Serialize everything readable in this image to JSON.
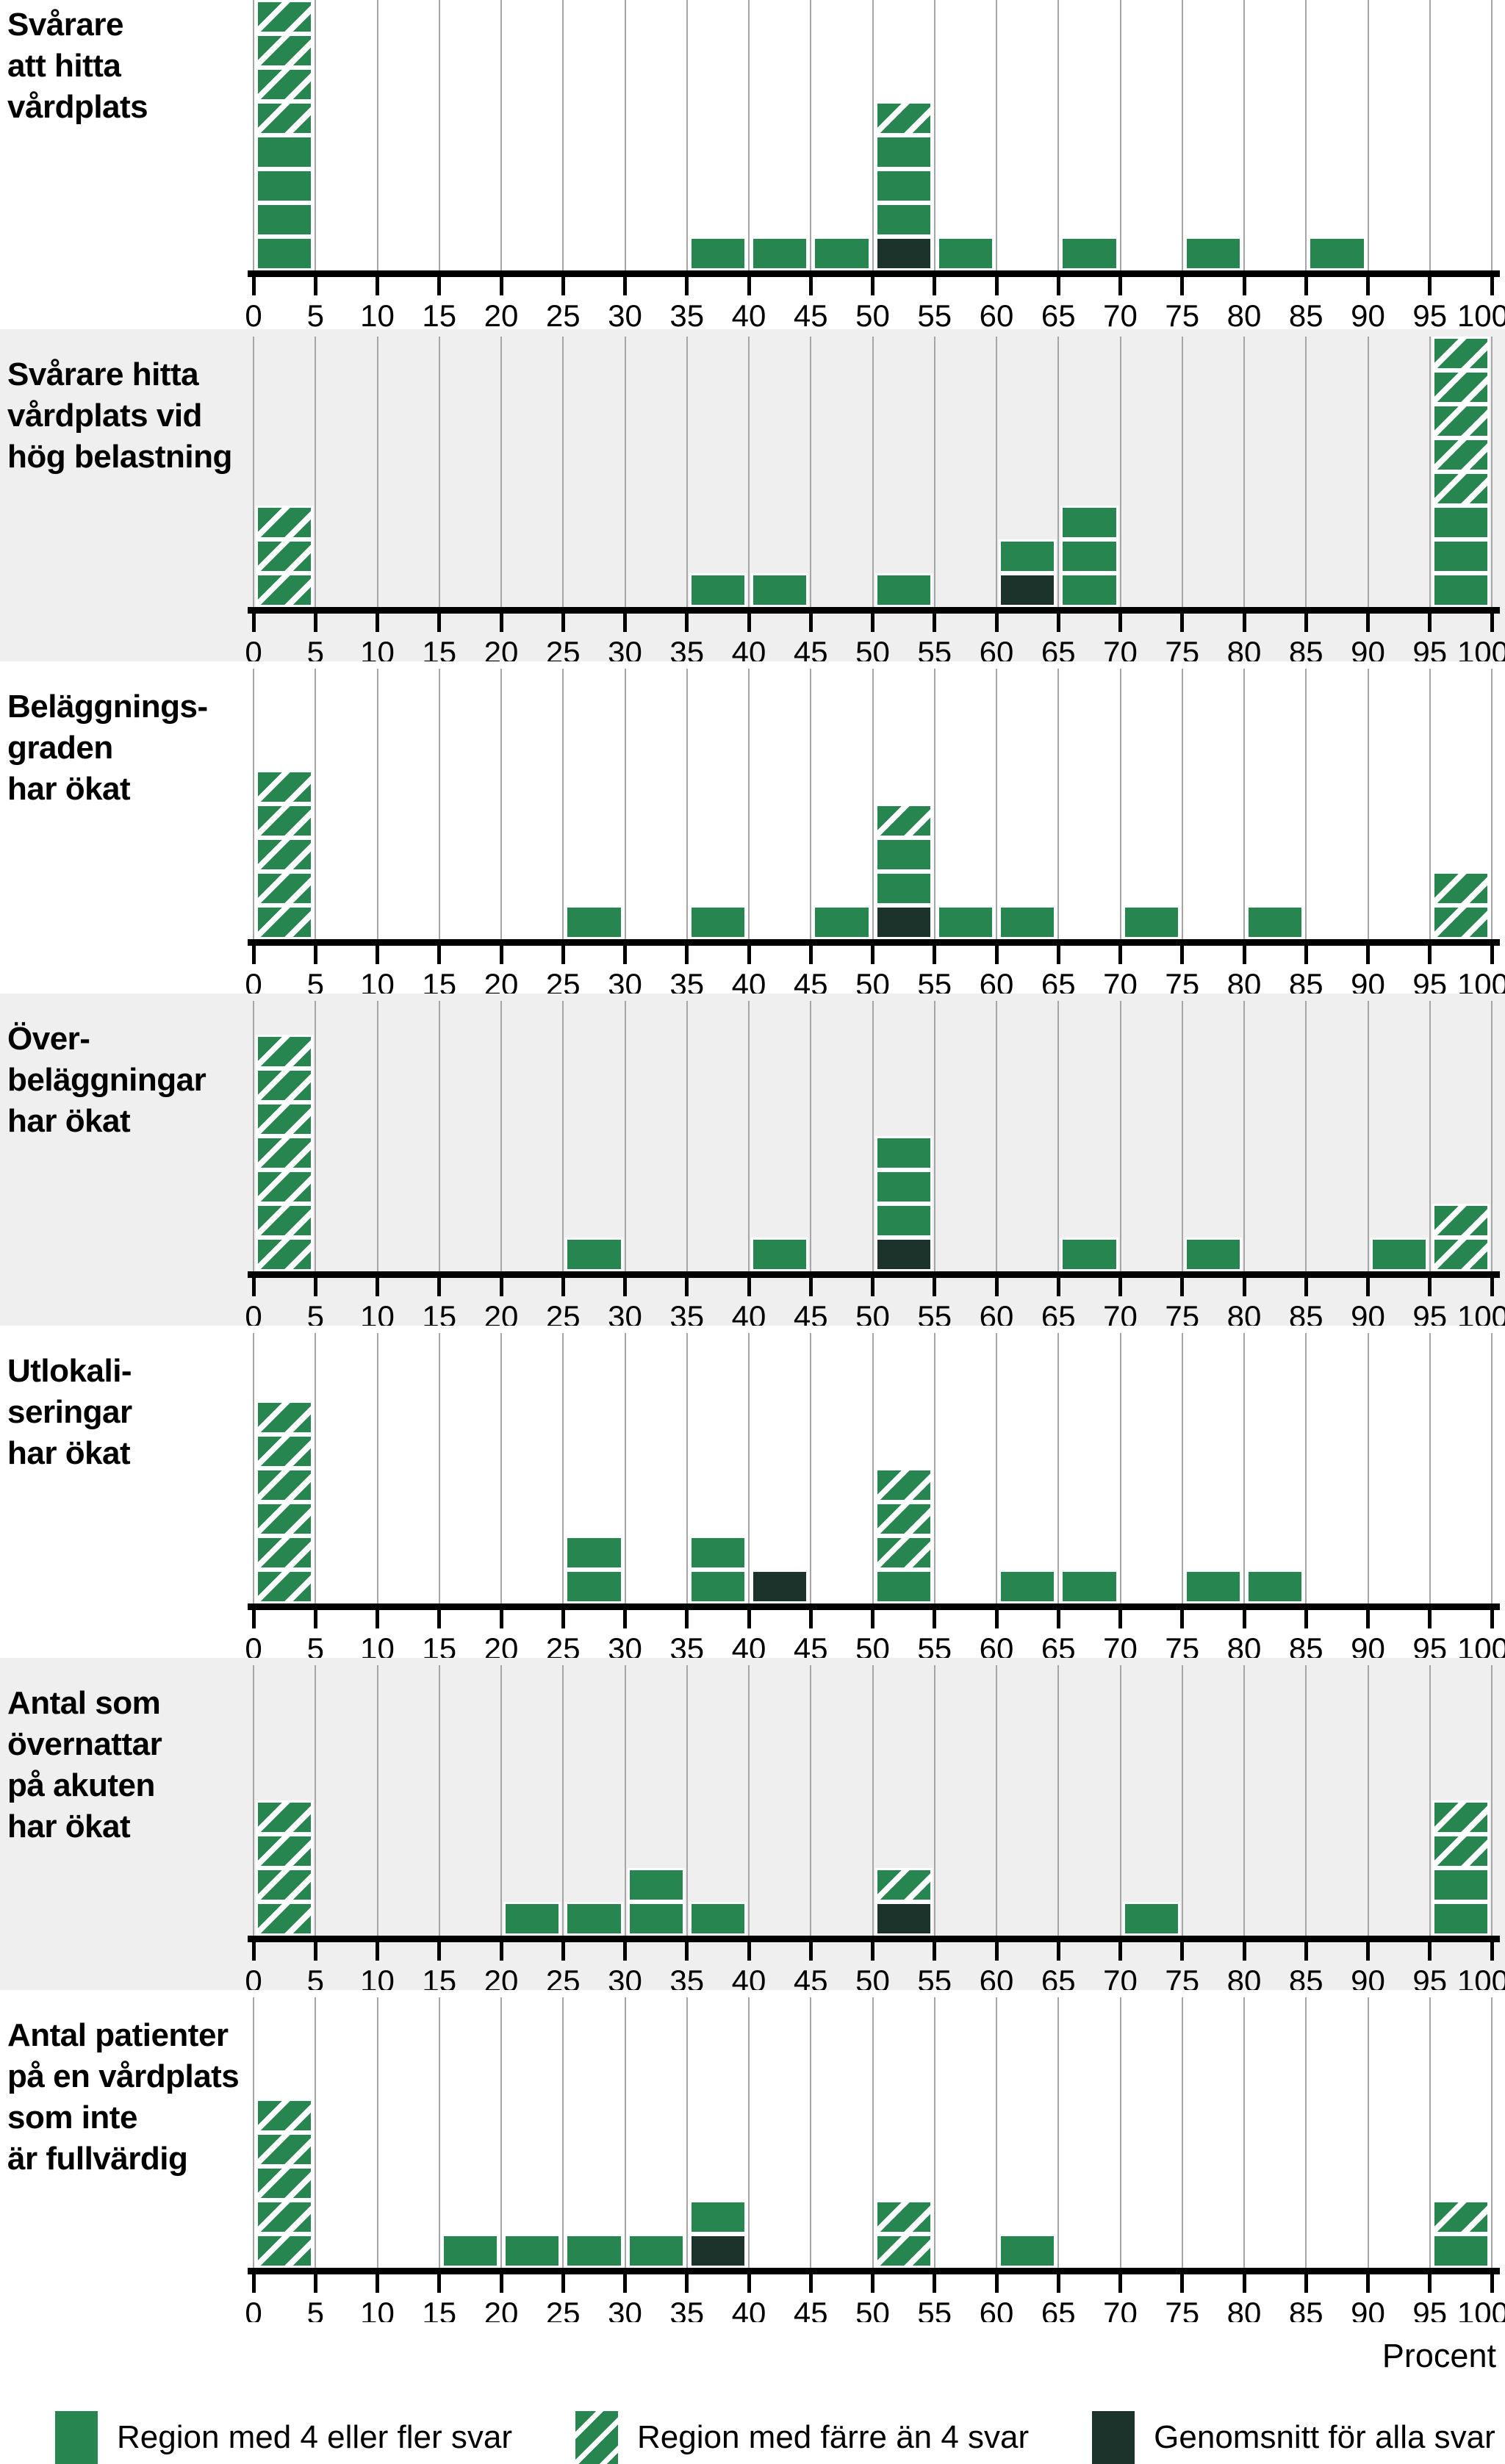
{
  "colors": {
    "solid_green": "#27854f",
    "dark_green": "#1c332b",
    "hatch_stripe": "#ffffff",
    "panel_gray_bg": "#efefef",
    "panel_white_bg": "#ffffff",
    "grid_line": "#a6a6a6",
    "axis_line": "#000000"
  },
  "chart_data": {
    "type": "bar",
    "subtype": "stacked-unit-histogram",
    "x_axis": {
      "min": 0,
      "max": 100,
      "tick_step": 5,
      "tick_labels": [
        "0",
        "5",
        "10",
        "15",
        "20",
        "25",
        "30",
        "35",
        "40",
        "45",
        "50",
        "55",
        "60",
        "65",
        "70",
        "75",
        "80",
        "85",
        "90",
        "95",
        "100"
      ],
      "label": "Procent"
    },
    "grid": "vertical-on",
    "legend_position": "bottom",
    "legend": [
      {
        "key": "solid",
        "label": "Region med 4 eller fler svar"
      },
      {
        "key": "hatched",
        "label": "Region med färre än 4 svar"
      },
      {
        "key": "dark",
        "label": "Genomsnitt för alla svar"
      }
    ],
    "panels": [
      {
        "label_lines": [
          "Svårare",
          "att hitta",
          "vårdplats"
        ],
        "background": "white",
        "bars": [
          {
            "bin": 0,
            "stack": [
              "solid",
              "solid",
              "solid",
              "solid",
              "hatched",
              "hatched",
              "hatched",
              "hatched"
            ]
          },
          {
            "bin": 35,
            "stack": [
              "solid"
            ]
          },
          {
            "bin": 40,
            "stack": [
              "solid"
            ]
          },
          {
            "bin": 45,
            "stack": [
              "solid"
            ]
          },
          {
            "bin": 50,
            "stack": [
              "dark",
              "solid",
              "solid",
              "solid",
              "hatched"
            ]
          },
          {
            "bin": 55,
            "stack": [
              "solid"
            ]
          },
          {
            "bin": 65,
            "stack": [
              "solid"
            ]
          },
          {
            "bin": 75,
            "stack": [
              "solid"
            ]
          },
          {
            "bin": 85,
            "stack": [
              "solid"
            ]
          }
        ]
      },
      {
        "label_lines": [
          "Svårare hitta",
          "vårdplats vid",
          "hög belastning"
        ],
        "background": "gray",
        "bars": [
          {
            "bin": 0,
            "stack": [
              "hatched",
              "hatched",
              "hatched"
            ]
          },
          {
            "bin": 35,
            "stack": [
              "solid"
            ]
          },
          {
            "bin": 40,
            "stack": [
              "solid"
            ]
          },
          {
            "bin": 50,
            "stack": [
              "solid"
            ]
          },
          {
            "bin": 60,
            "stack": [
              "dark",
              "solid"
            ]
          },
          {
            "bin": 65,
            "stack": [
              "solid",
              "solid",
              "solid"
            ]
          },
          {
            "bin": 95,
            "stack": [
              "solid",
              "solid",
              "solid",
              "hatched",
              "hatched",
              "hatched",
              "hatched",
              "hatched"
            ]
          }
        ]
      },
      {
        "label_lines": [
          "Beläggnings-",
          "graden",
          "har ökat"
        ],
        "background": "white",
        "bars": [
          {
            "bin": 0,
            "stack": [
              "hatched",
              "hatched",
              "hatched",
              "hatched",
              "hatched"
            ]
          },
          {
            "bin": 25,
            "stack": [
              "solid"
            ]
          },
          {
            "bin": 35,
            "stack": [
              "solid"
            ]
          },
          {
            "bin": 45,
            "stack": [
              "solid"
            ]
          },
          {
            "bin": 50,
            "stack": [
              "dark",
              "solid",
              "solid",
              "hatched"
            ]
          },
          {
            "bin": 55,
            "stack": [
              "solid"
            ]
          },
          {
            "bin": 60,
            "stack": [
              "solid"
            ]
          },
          {
            "bin": 70,
            "stack": [
              "solid"
            ]
          },
          {
            "bin": 80,
            "stack": [
              "solid"
            ]
          },
          {
            "bin": 95,
            "stack": [
              "hatched",
              "hatched"
            ]
          }
        ]
      },
      {
        "label_lines": [
          "Över-",
          "beläggningar",
          "har ökat"
        ],
        "background": "gray",
        "bars": [
          {
            "bin": 0,
            "stack": [
              "hatched",
              "hatched",
              "hatched",
              "hatched",
              "hatched",
              "hatched",
              "hatched"
            ]
          },
          {
            "bin": 25,
            "stack": [
              "solid"
            ]
          },
          {
            "bin": 40,
            "stack": [
              "solid"
            ]
          },
          {
            "bin": 50,
            "stack": [
              "dark",
              "solid",
              "solid",
              "solid"
            ]
          },
          {
            "bin": 65,
            "stack": [
              "solid"
            ]
          },
          {
            "bin": 75,
            "stack": [
              "solid"
            ]
          },
          {
            "bin": 90,
            "stack": [
              "solid"
            ]
          },
          {
            "bin": 95,
            "stack": [
              "hatched",
              "hatched"
            ]
          }
        ]
      },
      {
        "label_lines": [
          "Utlokali-",
          "seringar",
          "har ökat"
        ],
        "background": "white",
        "bars": [
          {
            "bin": 0,
            "stack": [
              "hatched",
              "hatched",
              "hatched",
              "hatched",
              "hatched",
              "hatched"
            ]
          },
          {
            "bin": 25,
            "stack": [
              "solid",
              "solid"
            ]
          },
          {
            "bin": 35,
            "stack": [
              "solid",
              "solid"
            ]
          },
          {
            "bin": 40,
            "stack": [
              "dark"
            ]
          },
          {
            "bin": 50,
            "stack": [
              "solid",
              "hatched",
              "hatched",
              "hatched"
            ]
          },
          {
            "bin": 60,
            "stack": [
              "solid"
            ]
          },
          {
            "bin": 65,
            "stack": [
              "solid"
            ]
          },
          {
            "bin": 75,
            "stack": [
              "solid"
            ]
          },
          {
            "bin": 80,
            "stack": [
              "solid"
            ]
          }
        ]
      },
      {
        "label_lines": [
          "Antal som",
          "övernattar",
          "på akuten",
          "har ökat"
        ],
        "background": "gray",
        "bars": [
          {
            "bin": 0,
            "stack": [
              "hatched",
              "hatched",
              "hatched",
              "hatched"
            ]
          },
          {
            "bin": 20,
            "stack": [
              "solid"
            ]
          },
          {
            "bin": 25,
            "stack": [
              "solid"
            ]
          },
          {
            "bin": 30,
            "stack": [
              "solid",
              "solid"
            ]
          },
          {
            "bin": 35,
            "stack": [
              "solid"
            ]
          },
          {
            "bin": 50,
            "stack": [
              "dark",
              "hatched"
            ]
          },
          {
            "bin": 70,
            "stack": [
              "solid"
            ]
          },
          {
            "bin": 95,
            "stack": [
              "solid",
              "solid",
              "hatched",
              "hatched"
            ]
          }
        ]
      },
      {
        "label_lines": [
          "Antal patienter",
          "på en vårdplats",
          "som inte",
          "är fullvärdig"
        ],
        "background": "white",
        "bars": [
          {
            "bin": 0,
            "stack": [
              "hatched",
              "hatched",
              "hatched",
              "hatched",
              "hatched"
            ]
          },
          {
            "bin": 15,
            "stack": [
              "solid"
            ]
          },
          {
            "bin": 20,
            "stack": [
              "solid"
            ]
          },
          {
            "bin": 25,
            "stack": [
              "solid"
            ]
          },
          {
            "bin": 30,
            "stack": [
              "solid"
            ]
          },
          {
            "bin": 35,
            "stack": [
              "dark",
              "solid"
            ]
          },
          {
            "bin": 50,
            "stack": [
              "hatched",
              "hatched"
            ]
          },
          {
            "bin": 60,
            "stack": [
              "solid"
            ]
          },
          {
            "bin": 95,
            "stack": [
              "solid",
              "hatched"
            ]
          }
        ]
      }
    ]
  }
}
